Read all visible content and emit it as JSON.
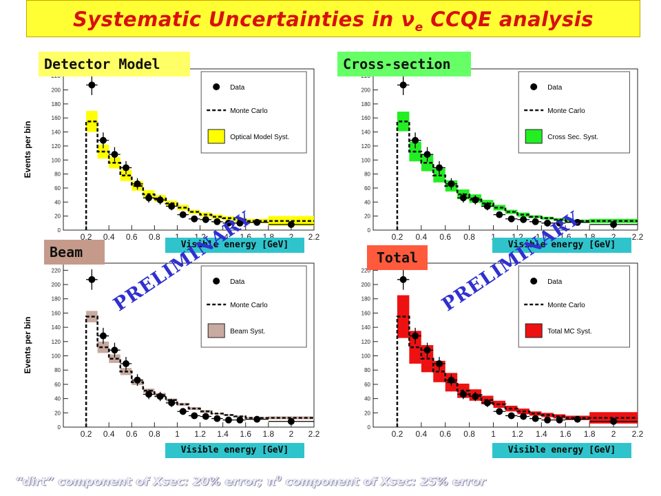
{
  "title": {
    "prefix": "Systematic Uncertainties in ",
    "nu": "ν",
    "sub": "e",
    "suffix": " CCQE analysis"
  },
  "panel_labels": {
    "detector": "Detector Model",
    "xsec": "Cross-section",
    "beam": "Beam",
    "total": "Total"
  },
  "xlabel_overlay": "Visible energy [GeV]",
  "preliminary": "PRELIMINARY",
  "footnote": {
    "part1": "“dirt” component of Xsec: 20% error; ",
    "pi": "π",
    "sup": "0",
    "part2": " component of Xsec: 25% error"
  },
  "colors": {
    "title_bg": "#ffff33",
    "title_text": "#d81010",
    "detector": "#ffff00",
    "xsec": "#22ee22",
    "beam": "#c8aaa0",
    "total": "#ee1111",
    "label_detector": "#ffff66",
    "label_xsec": "#66ff66",
    "label_beam": "#c69a8a",
    "label_total": "#ff5a3c",
    "xlabel_box": "#2fc4cc",
    "preliminary": "#3030d0"
  },
  "chart_data": [
    {
      "type": "bar",
      "panel": "detector",
      "ylabel": "Events per bin",
      "xlim": [
        0,
        2.2
      ],
      "ylim": [
        0,
        230
      ],
      "xticks": [
        "0.2",
        "0.4",
        "0.6",
        "0.8",
        "1",
        "1.2",
        "1.4",
        "1.6",
        "1.8",
        "2",
        "2.2"
      ],
      "yticks": [
        "0",
        "20",
        "40",
        "60",
        "80",
        "100",
        "120",
        "140",
        "160",
        "180",
        "200",
        "220"
      ],
      "legend": [
        "Data",
        "Monte Carlo",
        "Optical Model Syst."
      ],
      "legend_position": "top-right",
      "bin_edges": [
        0.2,
        0.3,
        0.4,
        0.5,
        0.6,
        0.7,
        0.8,
        0.9,
        1.0,
        1.1,
        1.2,
        1.3,
        1.4,
        1.5,
        1.6,
        1.8,
        2.2
      ],
      "data_x": [
        0.25,
        0.35,
        0.45,
        0.55,
        0.65,
        0.75,
        0.85,
        0.95,
        1.05,
        1.15,
        1.25,
        1.35,
        1.45,
        1.55,
        1.7,
        2.0
      ],
      "data_y": [
        207,
        128,
        108,
        89,
        66,
        46,
        43,
        34,
        22,
        16,
        15,
        12,
        10,
        10,
        11,
        8
      ],
      "mc": [
        155,
        112,
        96,
        78,
        63,
        51,
        45,
        38,
        32,
        26,
        22,
        19,
        17,
        15,
        13,
        13
      ],
      "syst": [
        15,
        10,
        8,
        8,
        7,
        6,
        5,
        4,
        4,
        3,
        3,
        3,
        3,
        3,
        3,
        7
      ]
    },
    {
      "type": "bar",
      "panel": "xsec",
      "ylabel": "",
      "xlim": [
        0,
        2.2
      ],
      "ylim": [
        0,
        230
      ],
      "xticks": [
        "0.2",
        "0.4",
        "0.6",
        "0.8",
        "1",
        "1.2",
        "1.4",
        "1.6",
        "1.8",
        "2",
        "2.2"
      ],
      "yticks": [
        "0",
        "20",
        "40",
        "60",
        "80",
        "100",
        "120",
        "140",
        "160",
        "180",
        "200",
        "220"
      ],
      "legend": [
        "Data",
        "Monte Carlo",
        "Cross Sec. Syst."
      ],
      "legend_position": "top-right",
      "bin_edges": [
        0.2,
        0.3,
        0.4,
        0.5,
        0.6,
        0.7,
        0.8,
        0.9,
        1.0,
        1.1,
        1.2,
        1.3,
        1.4,
        1.5,
        1.6,
        1.8,
        2.2
      ],
      "data_x": [
        0.25,
        0.35,
        0.45,
        0.55,
        0.65,
        0.75,
        0.85,
        0.95,
        1.05,
        1.15,
        1.25,
        1.35,
        1.45,
        1.55,
        1.7,
        2.0
      ],
      "data_y": [
        207,
        128,
        108,
        89,
        66,
        46,
        43,
        34,
        22,
        16,
        15,
        12,
        10,
        10,
        11,
        8
      ],
      "mc": [
        155,
        112,
        96,
        78,
        63,
        51,
        45,
        38,
        32,
        26,
        22,
        19,
        17,
        15,
        13,
        13
      ],
      "syst": [
        14,
        14,
        12,
        10,
        8,
        7,
        6,
        5,
        4,
        3,
        3,
        2,
        2,
        2,
        2,
        3
      ]
    },
    {
      "type": "bar",
      "panel": "beam",
      "ylabel": "Events per bin",
      "xlim": [
        0,
        2.2
      ],
      "ylim": [
        0,
        230
      ],
      "xticks": [
        "0.2",
        "0.4",
        "0.6",
        "0.8",
        "1",
        "1.2",
        "1.4",
        "1.6",
        "1.8",
        "2",
        "2.2"
      ],
      "yticks": [
        "0",
        "20",
        "40",
        "60",
        "80",
        "100",
        "120",
        "140",
        "160",
        "180",
        "200",
        "220"
      ],
      "legend": [
        "Data",
        "Monte Carlo",
        "Beam Syst."
      ],
      "legend_position": "top-right",
      "bin_edges": [
        0.2,
        0.3,
        0.4,
        0.5,
        0.6,
        0.7,
        0.8,
        0.9,
        1.0,
        1.1,
        1.2,
        1.3,
        1.4,
        1.5,
        1.6,
        1.8,
        2.2
      ],
      "data_x": [
        0.25,
        0.35,
        0.45,
        0.55,
        0.65,
        0.75,
        0.85,
        0.95,
        1.05,
        1.15,
        1.25,
        1.35,
        1.45,
        1.55,
        1.7,
        2.0
      ],
      "data_y": [
        207,
        128,
        108,
        89,
        66,
        46,
        43,
        34,
        22,
        16,
        15,
        12,
        10,
        10,
        11,
        8
      ],
      "mc": [
        155,
        112,
        96,
        78,
        63,
        51,
        45,
        38,
        32,
        26,
        22,
        19,
        17,
        15,
        13,
        13
      ],
      "syst": [
        8,
        8,
        6,
        5,
        4,
        3,
        3,
        2,
        2,
        2,
        2,
        1,
        1,
        1,
        1,
        2
      ]
    },
    {
      "type": "bar",
      "panel": "total",
      "ylabel": "",
      "xlim": [
        0,
        2.2
      ],
      "ylim": [
        0,
        230
      ],
      "xticks": [
        "0.2",
        "0.4",
        "0.6",
        "0.8",
        "1",
        "1.2",
        "1.4",
        "1.6",
        "1.8",
        "2",
        "2.2"
      ],
      "yticks": [
        "0",
        "20",
        "40",
        "60",
        "80",
        "100",
        "120",
        "140",
        "160",
        "180",
        "200",
        "220"
      ],
      "legend": [
        "Data",
        "Monte Carlo",
        "Total MC Syst."
      ],
      "legend_position": "top-right",
      "bin_edges": [
        0.2,
        0.3,
        0.4,
        0.5,
        0.6,
        0.7,
        0.8,
        0.9,
        1.0,
        1.1,
        1.2,
        1.3,
        1.4,
        1.5,
        1.6,
        1.8,
        2.2
      ],
      "data_x": [
        0.25,
        0.35,
        0.45,
        0.55,
        0.65,
        0.75,
        0.85,
        0.95,
        1.05,
        1.15,
        1.25,
        1.35,
        1.45,
        1.55,
        1.7,
        2.0
      ],
      "data_y": [
        207,
        128,
        108,
        89,
        66,
        46,
        43,
        34,
        22,
        16,
        15,
        12,
        10,
        10,
        11,
        8
      ],
      "mc": [
        155,
        112,
        96,
        78,
        63,
        51,
        45,
        38,
        32,
        26,
        22,
        19,
        17,
        15,
        13,
        13
      ],
      "syst": [
        30,
        23,
        19,
        15,
        13,
        10,
        8,
        6,
        5,
        4,
        4,
        3,
        3,
        3,
        3,
        8
      ]
    }
  ]
}
